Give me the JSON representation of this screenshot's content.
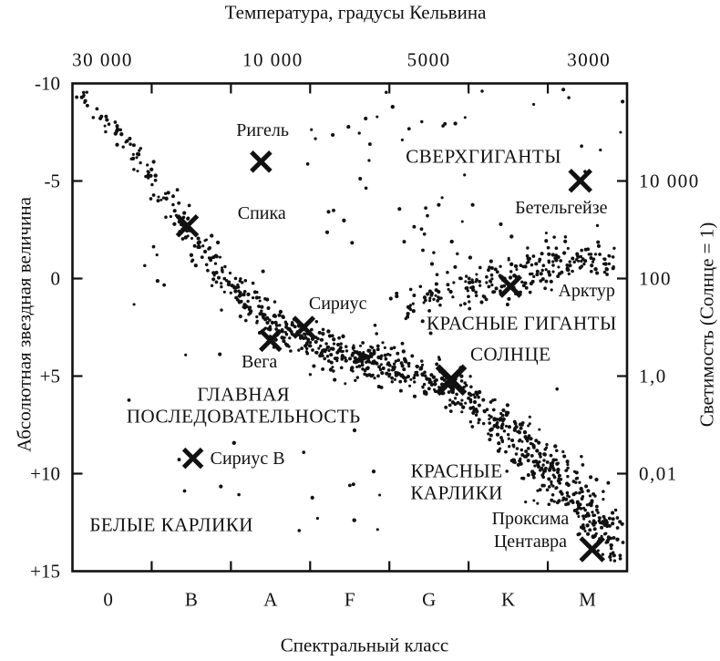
{
  "chart_data": {
    "type": "scatter",
    "description_labels_language": "ru",
    "ink_color": "#111111",
    "seed": 1234567,
    "axis_ranges": {
      "abs_magnitude": [
        -10,
        15
      ],
      "spectral_class_bands": 7
    },
    "axes": {
      "top": {
        "title": "Температура, градусы Кельвина",
        "ticks": [
          {
            "label": "30 000",
            "class_pos": 0.38
          },
          {
            "label": "10 000",
            "class_pos": 2.53
          },
          {
            "label": "5000",
            "class_pos": 4.5
          },
          {
            "label": "3000",
            "class_pos": 6.52
          }
        ]
      },
      "bottom": {
        "title": "Спектральный класс",
        "boundary_ticks": [
          1,
          2,
          3,
          4,
          5,
          6
        ],
        "labels": [
          {
            "label": "0",
            "class_pos": 0.45
          },
          {
            "label": "B",
            "class_pos": 1.5
          },
          {
            "label": "A",
            "class_pos": 2.5
          },
          {
            "label": "F",
            "class_pos": 3.5
          },
          {
            "label": "G",
            "class_pos": 4.5
          },
          {
            "label": "K",
            "class_pos": 5.5
          },
          {
            "label": "M",
            "class_pos": 6.5
          }
        ]
      },
      "left": {
        "title": "Абсолютная звездная величина",
        "ticks": [
          {
            "label": "-10",
            "mag": -10,
            "tick": false
          },
          {
            "label": "-5",
            "mag": -5,
            "tick": true
          },
          {
            "label": "0",
            "mag": 0,
            "tick": true
          },
          {
            "label": "+5",
            "mag": 5,
            "tick": true
          },
          {
            "label": "+10",
            "mag": 10,
            "tick": true
          },
          {
            "label": "+15",
            "mag": 15,
            "tick": false
          }
        ]
      },
      "right": {
        "title": "Светимость (Солнце = 1)",
        "ticks": [
          {
            "label": "10 000",
            "mag": -5
          },
          {
            "label": "100",
            "mag": 0
          },
          {
            "label": "1,0",
            "mag": 5
          },
          {
            "label": "0,01",
            "mag": 10
          }
        ]
      }
    },
    "named_stars": [
      {
        "id": "rigel",
        "label": "Ригель",
        "marker_class": 2.38,
        "marker_mag": -5.99,
        "label_class": 2.4,
        "label_mag": -7.6,
        "marker_size": 21
      },
      {
        "id": "spica",
        "label": "Спика",
        "marker_class": 1.45,
        "marker_mag": -2.7,
        "label_class": 2.39,
        "label_mag": -3.35,
        "marker_size": 22
      },
      {
        "id": "sirius",
        "label": "Сириус",
        "marker_class": 2.92,
        "marker_mag": 2.5,
        "label_class": 3.35,
        "label_mag": 1.28,
        "marker_size": 22
      },
      {
        "id": "vega",
        "label": "Вега",
        "marker_class": 2.5,
        "marker_mag": 3.17,
        "label_class": 2.36,
        "label_mag": 4.27,
        "marker_size": 22
      },
      {
        "id": "arcturus",
        "label": "Арктур",
        "marker_class": 5.53,
        "marker_mag": 0.4,
        "label_class": 6.49,
        "label_mag": 0.65,
        "marker_size": 22
      },
      {
        "id": "betelgeuse",
        "label": "Бетельгейзе",
        "marker_class": 6.41,
        "marker_mag": -5.01,
        "label_class": 6.17,
        "label_mag": -3.6,
        "marker_size": 23
      },
      {
        "id": "sun",
        "label": "СОЛНЦЕ",
        "caps": true,
        "marker_class": 4.78,
        "marker_mag": 5.2,
        "label_class": 5.53,
        "label_mag": 3.92,
        "marker_size": 30
      },
      {
        "id": "sirius-b",
        "label": "Сириус B",
        "marker_class": 1.52,
        "marker_mag": 9.21,
        "label_class": 2.21,
        "label_mag": 9.24,
        "marker_size": 20
      },
      {
        "id": "proxima-centauri",
        "label": "Проксима Центавра",
        "label_lines": [
          "Проксима",
          "Центавра"
        ],
        "line_gap_mag": 1.2,
        "marker_class": 6.56,
        "marker_mag": 13.88,
        "label_class": 5.78,
        "label_mag": 12.3,
        "marker_size": 25
      }
    ],
    "region_labels": [
      {
        "id": "supergiants",
        "lines": [
          "СВЕРХГИГАНТЫ"
        ],
        "class_pos": 5.19,
        "mag": -6.24
      },
      {
        "id": "red-giants",
        "lines": [
          "КРАСНЫЕ ГИГАНТЫ"
        ],
        "class_pos": 5.67,
        "mag": 2.31
      },
      {
        "id": "main-sequence",
        "lines": [
          "ГЛАВНАЯ",
          "ПОСЛЕДОВАТЕЛЬНОСТЬ"
        ],
        "class_pos": 2.16,
        "mag": 5.96,
        "line_gap_mag": 1.12
      },
      {
        "id": "red-dwarfs",
        "lines": [
          "КРАСНЫЕ",
          "КАРЛИКИ"
        ],
        "class_pos": 4.85,
        "mag": 9.87,
        "line_gap_mag": 1.12
      },
      {
        "id": "white-dwarfs",
        "lines": [
          "БЕЛЫЕ КАРЛИКИ"
        ],
        "class_pos": 1.25,
        "mag": 12.64
      }
    ],
    "pointer_arrow": {
      "x_class": 3.66,
      "abs_mag": 3.99,
      "direction": "right"
    },
    "point_clusters": {
      "curves": [
        {
          "name": "main-sequence",
          "anchors": [
            [
              0.06,
              -9.6
            ],
            [
              0.52,
              -7.7
            ],
            [
              0.95,
              -5.5
            ],
            [
              1.39,
              -2.9
            ],
            [
              1.73,
              -0.95
            ],
            [
              2.19,
              1.0
            ],
            [
              2.65,
              2.6
            ],
            [
              3.11,
              3.5
            ],
            [
              3.63,
              4.1
            ],
            [
              4.2,
              4.65
            ],
            [
              4.78,
              5.6
            ],
            [
              5.35,
              7.2
            ],
            [
              5.93,
              9.3
            ],
            [
              6.45,
              11.75
            ],
            [
              6.82,
              13.9
            ]
          ],
          "segment_counts": [
            20,
            25,
            32,
            40,
            52,
            62,
            78,
            88,
            88,
            82,
            78,
            78,
            82,
            62
          ],
          "segment_sigma": [
            4,
            5,
            6,
            7,
            8,
            9,
            10,
            11,
            11,
            10,
            10,
            11,
            12,
            12
          ]
        },
        {
          "name": "red-giants-branch",
          "anchors": [
            [
              4.2,
              1.38
            ],
            [
              4.84,
              0.58
            ],
            [
              5.53,
              -0.26
            ],
            [
              6.22,
              -0.82
            ],
            [
              6.82,
              -1.05
            ]
          ],
          "segment_counts": [
            45,
            65,
            70,
            55
          ],
          "segment_sigma": [
            11,
            12,
            12,
            11
          ]
        },
        {
          "name": "red-dwarfs-widening",
          "anchors": [
            [
              5.5,
              7.8
            ],
            [
              6.0,
              9.9
            ],
            [
              6.45,
              11.9
            ],
            [
              6.85,
              14.0
            ]
          ],
          "segment_counts": [
            40,
            45,
            45
          ],
          "segment_sigma": [
            16,
            16,
            15
          ]
        }
      ],
      "boxes": [
        {
          "name": "supergiants-field",
          "x_class": [
            2.95,
            6.95
          ],
          "abs_mag": [
            -9.7,
            -1.8
          ],
          "count": 58
        },
        {
          "name": "giants-halo",
          "x_class": [
            4.3,
            6.9
          ],
          "abs_mag": [
            -3.5,
            -1.0
          ],
          "count": 22
        },
        {
          "name": "left-stragglers",
          "x_class": [
            0.55,
            2.9
          ],
          "abs_mag": [
            -4.5,
            1.5
          ],
          "count": 10
        },
        {
          "name": "mid-field",
          "x_class": [
            0.3,
            6.9
          ],
          "abs_mag": [
            -1.0,
            6.2
          ],
          "count": 14
        },
        {
          "name": "white-dwarfs-field",
          "x_class": [
            0.15,
            3.9
          ],
          "abs_mag": [
            5.8,
            14.7
          ],
          "count": 26
        }
      ]
    }
  }
}
